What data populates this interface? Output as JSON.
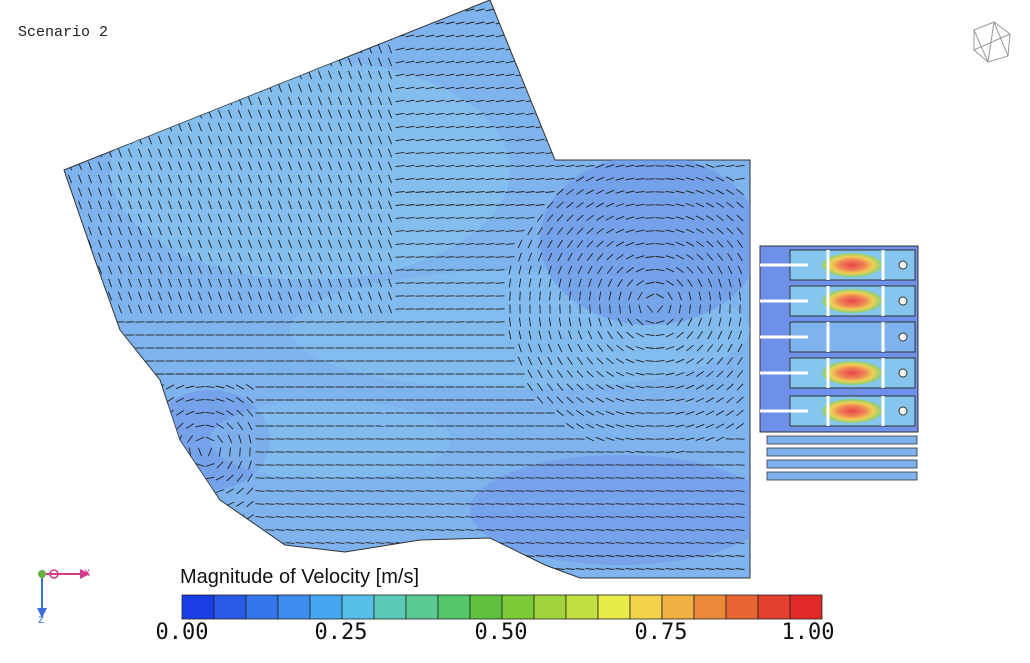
{
  "scenario_label": "Scenario 2",
  "legend": {
    "title": "Magnitude of Velocity [m/s]",
    "ticks": [
      "0.00",
      "0.25",
      "0.50",
      "0.75",
      "1.00"
    ],
    "colors": [
      "#1a3ee6",
      "#2a5be8",
      "#3577ea",
      "#3d8eee",
      "#47a6f0",
      "#56c0ea",
      "#5ccab8",
      "#5ccb93",
      "#55c76a",
      "#5ec23f",
      "#7cca37",
      "#9fd43a",
      "#c3e043",
      "#e9ec48",
      "#f3d14a",
      "#f0b042",
      "#ec8a3a",
      "#e86534",
      "#e44030",
      "#e02a28"
    ]
  },
  "axes": {
    "x_label": "x",
    "z_label": "z"
  },
  "colors": {
    "flow_main": "#7eb3ee",
    "flow_light": "#86c6ee",
    "flow_dark": "#6e90e8",
    "jet_core": "#e8424a",
    "jet_mid": "#f0cf54",
    "jet_outer": "#86d07a",
    "x_axis": "#d23c8c",
    "z_axis": "#3b6fd8",
    "origin": "#63b040"
  }
}
